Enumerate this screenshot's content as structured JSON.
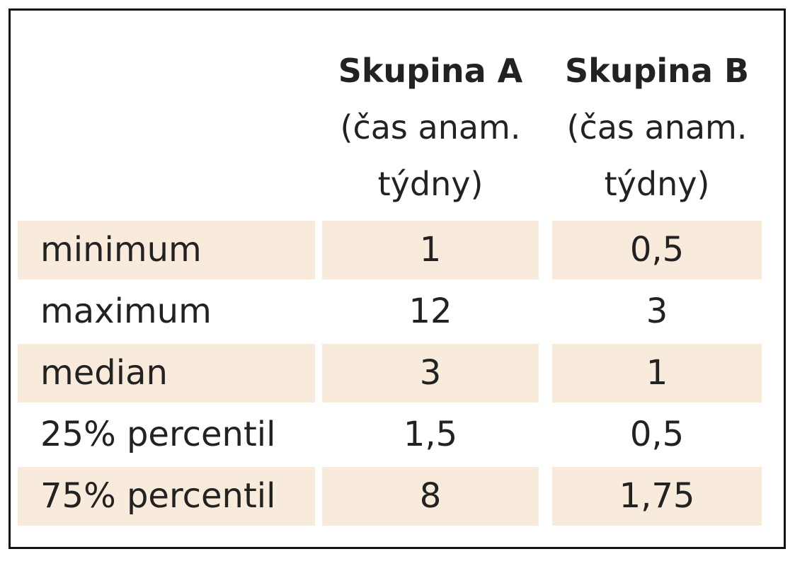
{
  "table": {
    "columns": [
      {
        "title": "Skupina A",
        "subtitle": [
          "(čas anam.",
          "týdny)"
        ]
      },
      {
        "title": "Skupina B",
        "subtitle": [
          "(čas anam.",
          "týdny)"
        ]
      }
    ],
    "rows": [
      [
        "minimum",
        "1",
        "0,5"
      ],
      [
        "maximum",
        "12",
        "3"
      ],
      [
        "median",
        "3",
        "1"
      ],
      [
        "25% percentil",
        "1,5",
        "0,5"
      ],
      [
        "75% percentil",
        "8",
        "1,75"
      ]
    ]
  }
}
